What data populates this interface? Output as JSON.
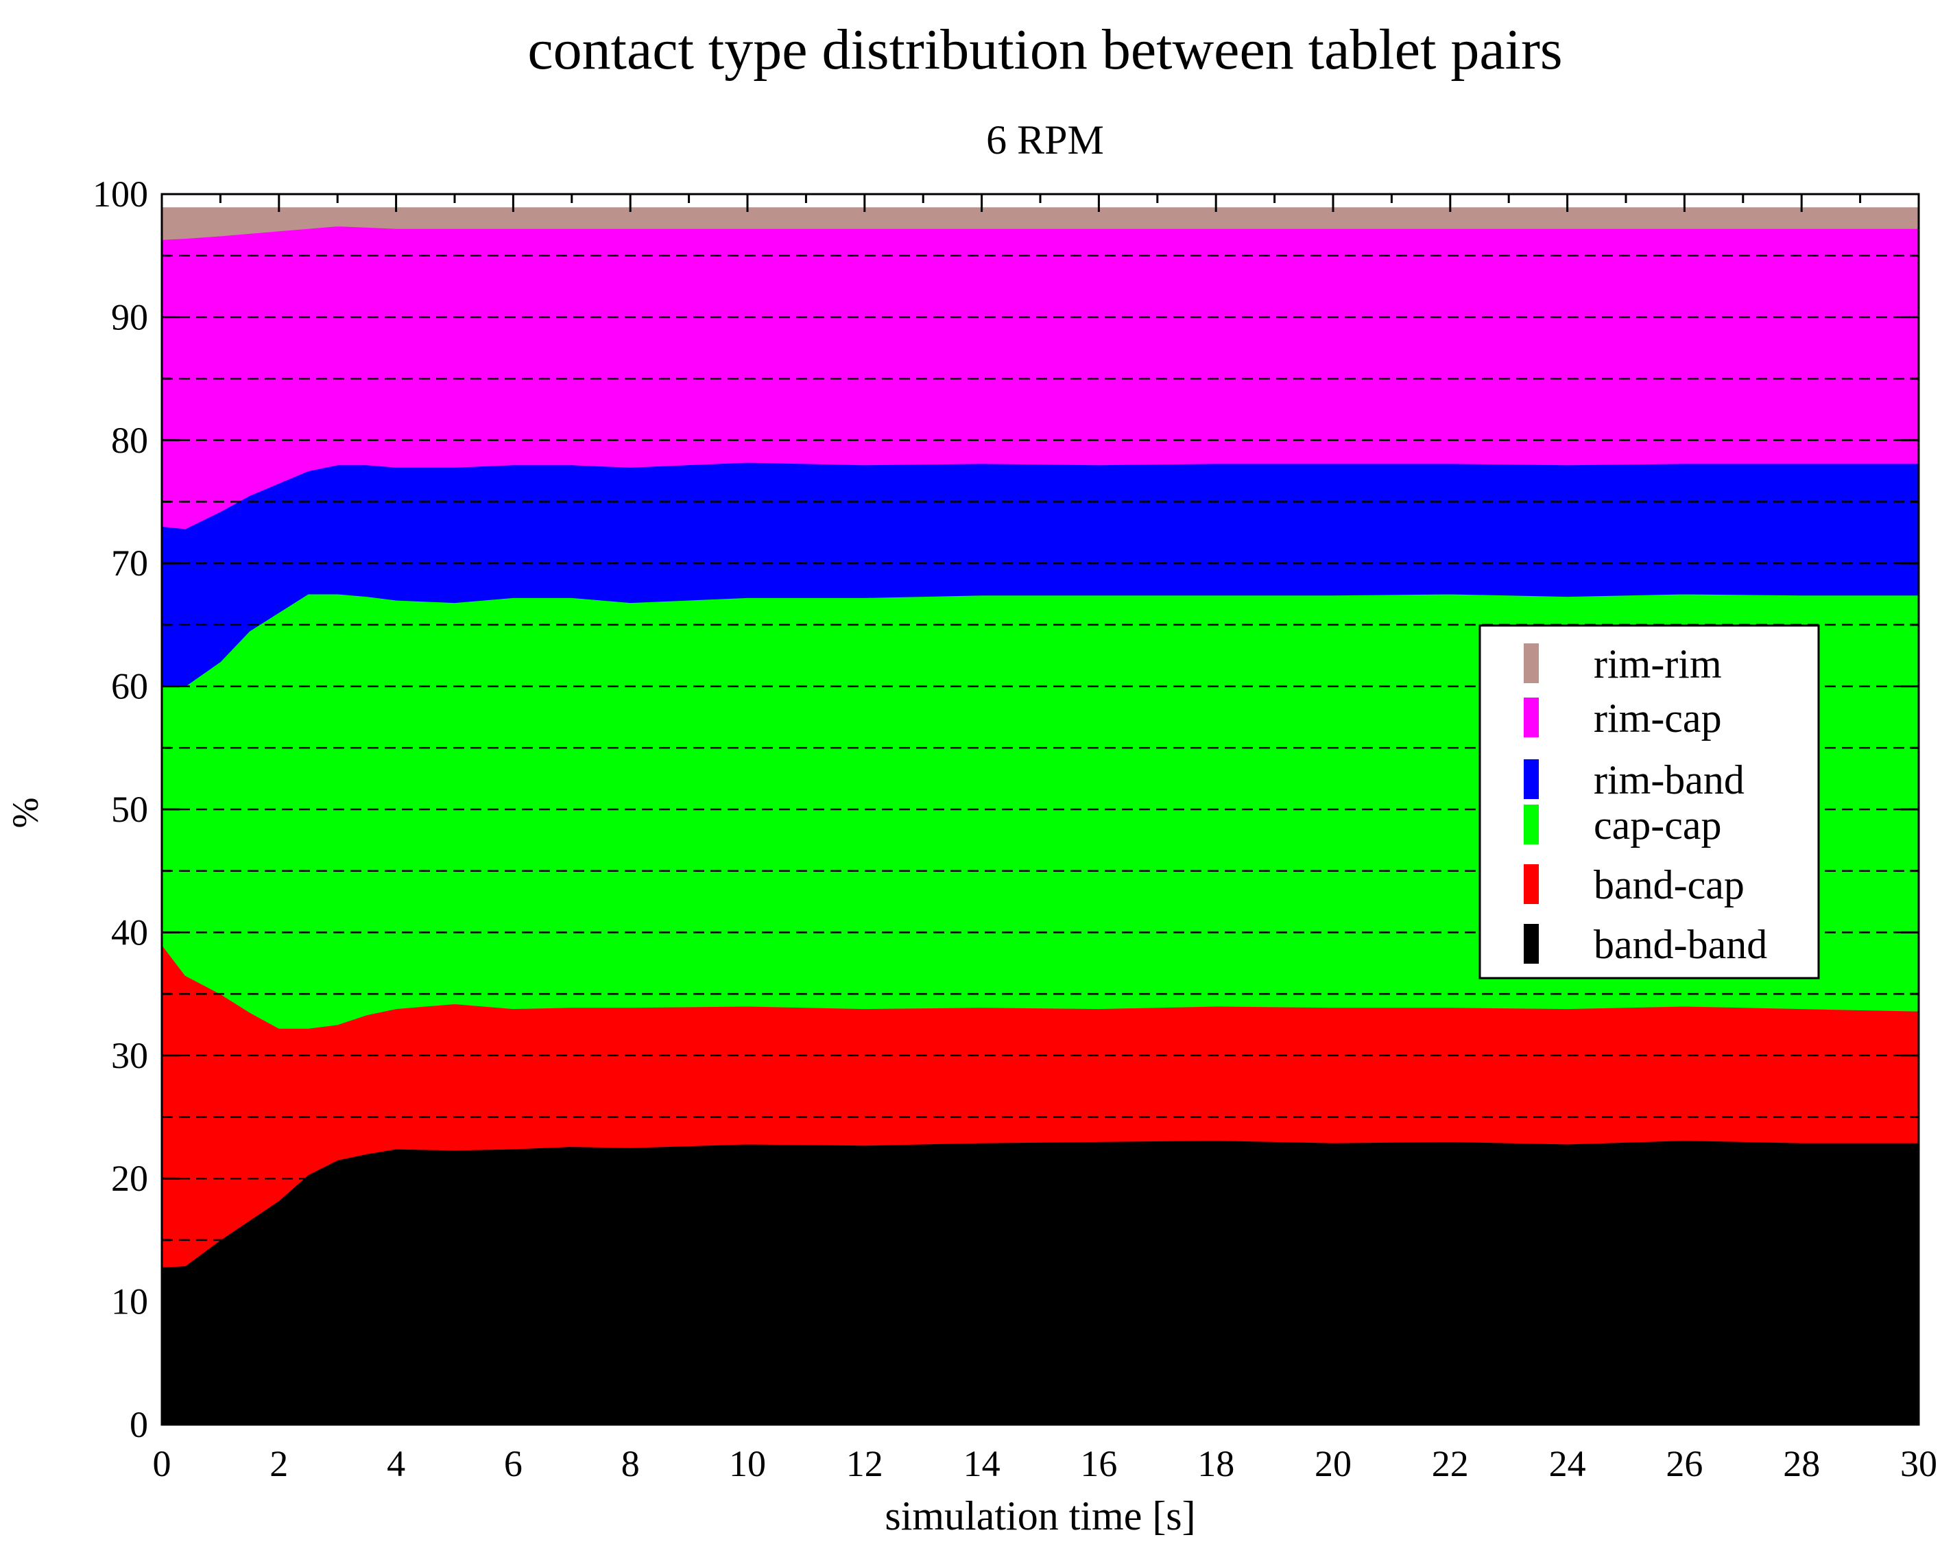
{
  "chart_data": {
    "type": "area",
    "stacked": true,
    "title": "contact type distribution between tablet pairs",
    "subtitle": "6 RPM",
    "xlabel": "simulation time [s]",
    "ylabel": "%",
    "xlim": [
      0,
      30
    ],
    "ylim": [
      0,
      100
    ],
    "xticks": [
      0,
      2,
      4,
      6,
      8,
      10,
      12,
      14,
      16,
      18,
      20,
      22,
      24,
      26,
      28,
      30
    ],
    "yticks": [
      0,
      10,
      20,
      30,
      40,
      50,
      60,
      70,
      80,
      90,
      100
    ],
    "grid": "horizontal dashed every 5",
    "legend_position": "right, middle",
    "x": [
      0,
      0.4,
      1,
      1.5,
      2,
      2.5,
      3,
      3.5,
      4,
      5,
      6,
      7,
      8,
      10,
      12,
      14,
      16,
      18,
      20,
      22,
      24,
      26,
      28,
      30
    ],
    "series": [
      {
        "name": "band-band",
        "color": "#000000",
        "upper": [
          12.8,
          12.9,
          15.0,
          16.6,
          18.2,
          20.3,
          21.5,
          22.0,
          22.4,
          22.3,
          22.4,
          22.6,
          22.5,
          22.8,
          22.7,
          22.9,
          23.0,
          23.1,
          22.9,
          23.0,
          22.8,
          23.1,
          22.9,
          22.9
        ]
      },
      {
        "name": "band-cap",
        "color": "#ff0000",
        "upper": [
          39.0,
          36.5,
          35.0,
          33.5,
          32.2,
          32.2,
          32.5,
          33.3,
          33.8,
          34.2,
          33.8,
          33.9,
          33.9,
          34.0,
          33.8,
          33.9,
          33.8,
          34.0,
          33.9,
          33.9,
          33.8,
          34.0,
          33.8,
          33.6
        ]
      },
      {
        "name": "cap-cap",
        "color": "#00ff00",
        "upper": [
          60.0,
          60.0,
          62.0,
          64.5,
          66.0,
          67.5,
          67.5,
          67.3,
          67.0,
          66.8,
          67.2,
          67.2,
          66.8,
          67.2,
          67.2,
          67.4,
          67.4,
          67.4,
          67.4,
          67.5,
          67.3,
          67.5,
          67.4,
          67.4
        ]
      },
      {
        "name": "rim-band",
        "color": "#0000ff",
        "upper": [
          73.0,
          72.8,
          74.2,
          75.5,
          76.5,
          77.5,
          78.0,
          78.0,
          77.8,
          77.8,
          78.0,
          78.0,
          77.8,
          78.2,
          78.0,
          78.1,
          78.0,
          78.1,
          78.1,
          78.1,
          78.0,
          78.1,
          78.1,
          78.1
        ]
      },
      {
        "name": "rim-cap",
        "color": "#ff00ff",
        "upper": [
          96.3,
          96.4,
          96.6,
          96.8,
          97.0,
          97.2,
          97.4,
          97.3,
          97.2,
          97.2,
          97.2,
          97.2,
          97.2,
          97.2,
          97.2,
          97.2,
          97.2,
          97.2,
          97.2,
          97.2,
          97.2,
          97.2,
          97.2,
          97.2
        ]
      },
      {
        "name": "rim-rim",
        "color": "#bb928c",
        "upper": [
          98.9,
          98.9,
          98.9,
          98.9,
          98.9,
          98.9,
          98.9,
          98.9,
          98.9,
          98.9,
          98.9,
          98.9,
          98.9,
          98.9,
          98.9,
          98.9,
          98.9,
          98.9,
          98.9,
          98.9,
          98.9,
          98.9,
          98.9,
          98.9
        ]
      }
    ],
    "legend_order": [
      "rim-rim",
      "rim-cap",
      "rim-band",
      "cap-cap",
      "band-cap",
      "band-band"
    ]
  }
}
